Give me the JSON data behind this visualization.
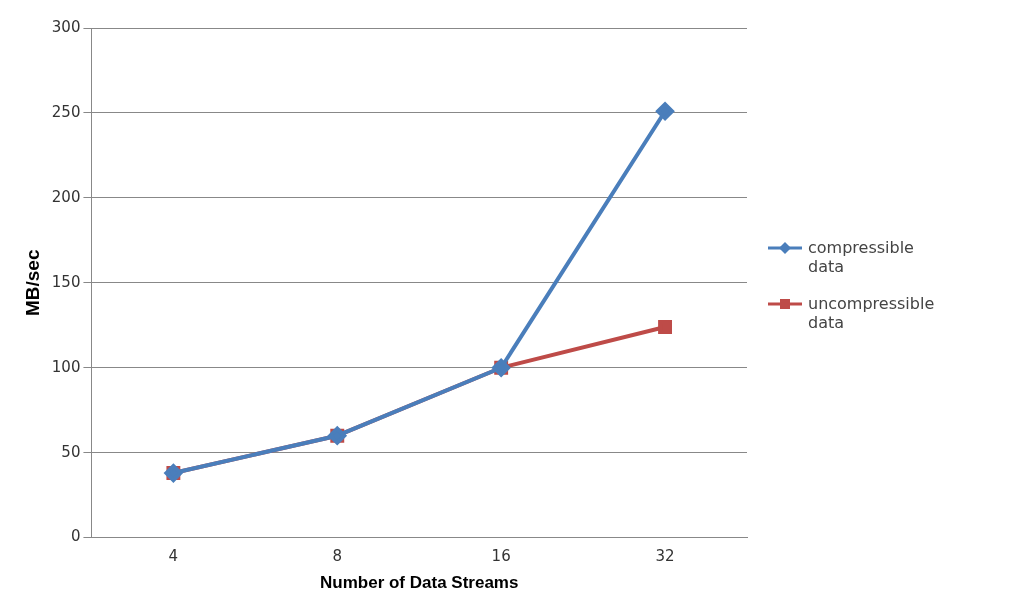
{
  "chart_data": {
    "type": "line",
    "xlabel": "Number of Data Streams",
    "ylabel": "MB/sec",
    "categories": [
      "4",
      "8",
      "16",
      "32"
    ],
    "series": [
      {
        "name": "compressible data",
        "color": "#4a7ebb",
        "values": [
          38,
          60,
          100,
          251
        ],
        "marker": "diamond"
      },
      {
        "name": "uncompressible data",
        "color": "#be4b48",
        "values": [
          38,
          60,
          100,
          124
        ],
        "marker": "square"
      }
    ],
    "ylim": [
      0,
      300
    ],
    "yticks": [
      0,
      50,
      100,
      150,
      200,
      250,
      300
    ],
    "grid": "y",
    "legend": "right"
  }
}
